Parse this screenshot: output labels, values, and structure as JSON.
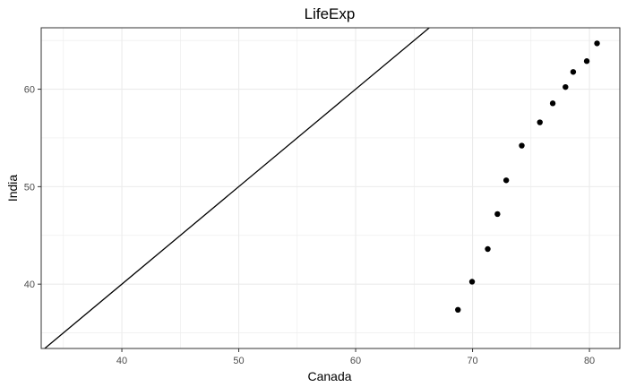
{
  "chart_data": {
    "type": "scatter",
    "title": "LifeExp",
    "xlabel": "Canada",
    "ylabel": "India",
    "xlim": [
      33.1,
      82.6
    ],
    "ylim": [
      33.4,
      66.3
    ],
    "xticks": [
      40,
      50,
      60,
      70,
      80
    ],
    "yticks": [
      40,
      50,
      60
    ],
    "grid": true,
    "legend": "none",
    "reference_line": {
      "slope": 1,
      "intercept": 0
    },
    "points": [
      {
        "x": 68.75,
        "y": 37.37
      },
      {
        "x": 69.96,
        "y": 40.25
      },
      {
        "x": 71.3,
        "y": 43.6
      },
      {
        "x": 72.13,
        "y": 47.19
      },
      {
        "x": 72.88,
        "y": 50.65
      },
      {
        "x": 74.21,
        "y": 54.21
      },
      {
        "x": 75.76,
        "y": 56.6
      },
      {
        "x": 76.86,
        "y": 58.55
      },
      {
        "x": 77.95,
        "y": 60.22
      },
      {
        "x": 78.61,
        "y": 61.77
      },
      {
        "x": 79.77,
        "y": 62.88
      },
      {
        "x": 80.65,
        "y": 64.7
      }
    ],
    "colors": {
      "points": "#000000",
      "line": "#000000",
      "grid": "#ebebeb",
      "panel_border": "#333333"
    }
  }
}
